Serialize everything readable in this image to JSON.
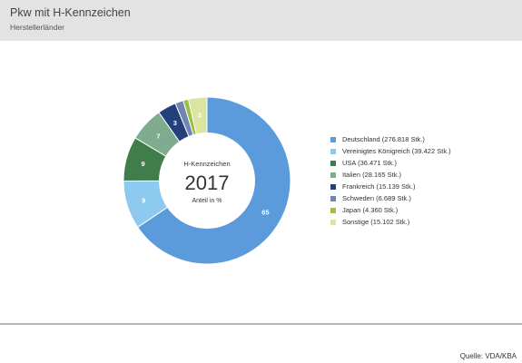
{
  "header": {
    "title": "Pkw mit H-Kennzeichen",
    "subtitle": "Herstellerländer"
  },
  "center": {
    "label": "H-Kennzeichen",
    "year": "2017",
    "unit": "Anteil in %"
  },
  "source": "Quelle: VDA/KBA",
  "chart_data": {
    "type": "pie",
    "variant": "donut",
    "title": "Pkw mit H-Kennzeichen",
    "subtitle": "Herstellerländer",
    "legend_position": "right",
    "slices": [
      {
        "label": "Deutschland (276.818 Stk.)",
        "value": 276818,
        "share_label": "65",
        "color": "#5b9bdc"
      },
      {
        "label": "Vereinigtes Königreich (39.422 Stk.)",
        "value": 39422,
        "share_label": "9",
        "color": "#8ec9ef"
      },
      {
        "label": "USA (36.471 Stk.)",
        "value": 36471,
        "share_label": "9",
        "color": "#3f7d4a"
      },
      {
        "label": "Italien (28.165 Stk.)",
        "value": 28165,
        "share_label": "7",
        "color": "#7fab8e"
      },
      {
        "label": "Frankreich (15.139 Stk.)",
        "value": 15139,
        "share_label": "3",
        "color": "#233f7c"
      },
      {
        "label": "Schweden (6.689 Stk.)",
        "value": 6689,
        "share_label": "",
        "color": "#6f85b3"
      },
      {
        "label": "Japan (4.360 Stk.)",
        "value": 4360,
        "share_label": "",
        "color": "#9ec03f"
      },
      {
        "label": "Sonstige (15.102 Stk.)",
        "value": 15102,
        "share_label": "3",
        "color": "#d9e5a0"
      }
    ]
  }
}
